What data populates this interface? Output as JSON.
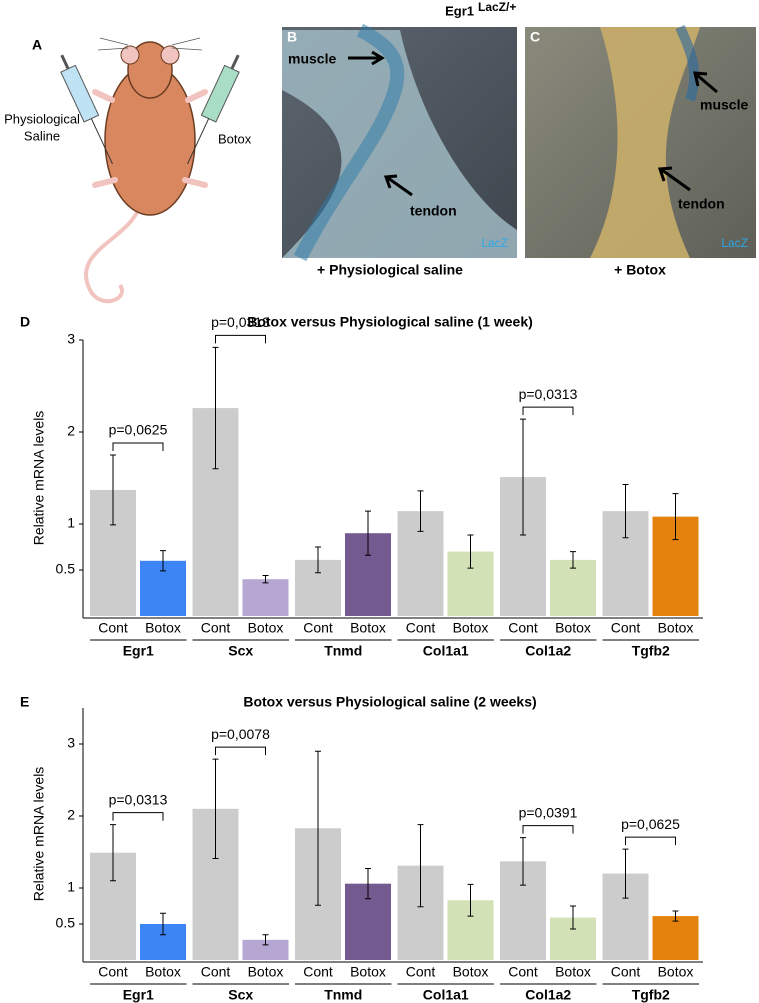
{
  "figure": {
    "panel_a": {
      "label": "A",
      "left_label": [
        "Physiological",
        "Saline"
      ],
      "right_label": "Botox"
    },
    "header": {
      "gene": "Egr1",
      "allele": "LacZ/+"
    },
    "panel_b": {
      "label": "B",
      "muscle": "muscle",
      "tendon": "tendon",
      "stain": "LacZ",
      "caption": "+ Physiological saline"
    },
    "panel_c": {
      "label": "C",
      "muscle": "muscle",
      "tendon": "tendon",
      "stain": "LacZ",
      "caption": "+ Botox"
    }
  },
  "chart_data": [
    {
      "type": "bar",
      "panel": "D",
      "title": "Botox versus Physiological saline (1 week)",
      "ylabel": "Relative mRNA levels",
      "categories": [
        "Egr1",
        "Scx",
        "Tnmd",
        "Col1a1",
        "Col1a2",
        "Tgfb2"
      ],
      "series": [
        {
          "name": "Cont",
          "color": "#cccccc",
          "values": [
            1.37,
            2.26,
            0.61,
            1.14,
            1.51,
            1.14
          ],
          "errors": [
            0.38,
            0.66,
            0.14,
            0.22,
            0.63,
            0.29
          ]
        },
        {
          "name": "Botox",
          "colors": [
            "#3d85f5",
            "#b5a6d2",
            "#735a8f",
            "#d3e2b6",
            "#d3e2b6",
            "#e5820e"
          ],
          "values": [
            0.6,
            0.4,
            0.9,
            0.7,
            0.61,
            1.08
          ],
          "errors": [
            0.11,
            0.04,
            0.24,
            0.18,
            0.09,
            0.25
          ]
        }
      ],
      "annotations": [
        {
          "text": "p=0,0625",
          "category": "Egr1"
        },
        {
          "text": "p=0,0313",
          "category": "Scx"
        },
        {
          "text": "p=0,0313",
          "category": "Col1a2"
        }
      ],
      "ylim": [
        0,
        3
      ],
      "yticks": [
        0.5,
        1,
        2,
        3
      ]
    },
    {
      "type": "bar",
      "panel": "E",
      "title": "Botox versus Physiological saline (2 weeks)",
      "ylabel": "Relative mRNA levels",
      "categories": [
        "Egr1",
        "Scx",
        "Tnmd",
        "Col1a1",
        "Col1a2",
        "Tgfb2"
      ],
      "series": [
        {
          "name": "Cont",
          "color": "#cccccc",
          "values": [
            1.49,
            2.1,
            1.83,
            1.31,
            1.37,
            1.2
          ],
          "errors": [
            0.39,
            0.69,
            1.07,
            0.57,
            0.33,
            0.34
          ]
        },
        {
          "name": "Botox",
          "colors": [
            "#3d85f5",
            "#b5a6d2",
            "#735a8f",
            "#d3e2b6",
            "#d3e2b6",
            "#e5820e"
          ],
          "values": [
            0.5,
            0.28,
            1.06,
            0.83,
            0.59,
            0.61
          ],
          "errors": [
            0.15,
            0.07,
            0.21,
            0.22,
            0.16,
            0.07
          ]
        }
      ],
      "annotations": [
        {
          "text": "p=0,0313",
          "category": "Egr1"
        },
        {
          "text": "p=0,0078",
          "category": "Scx"
        },
        {
          "text": "p=0,0391",
          "category": "Col1a2"
        },
        {
          "text": "p=0,0625",
          "category": "Tgfb2"
        }
      ],
      "ylim": [
        0,
        3.5
      ],
      "yticks": [
        0.5,
        1,
        2,
        3
      ]
    }
  ]
}
